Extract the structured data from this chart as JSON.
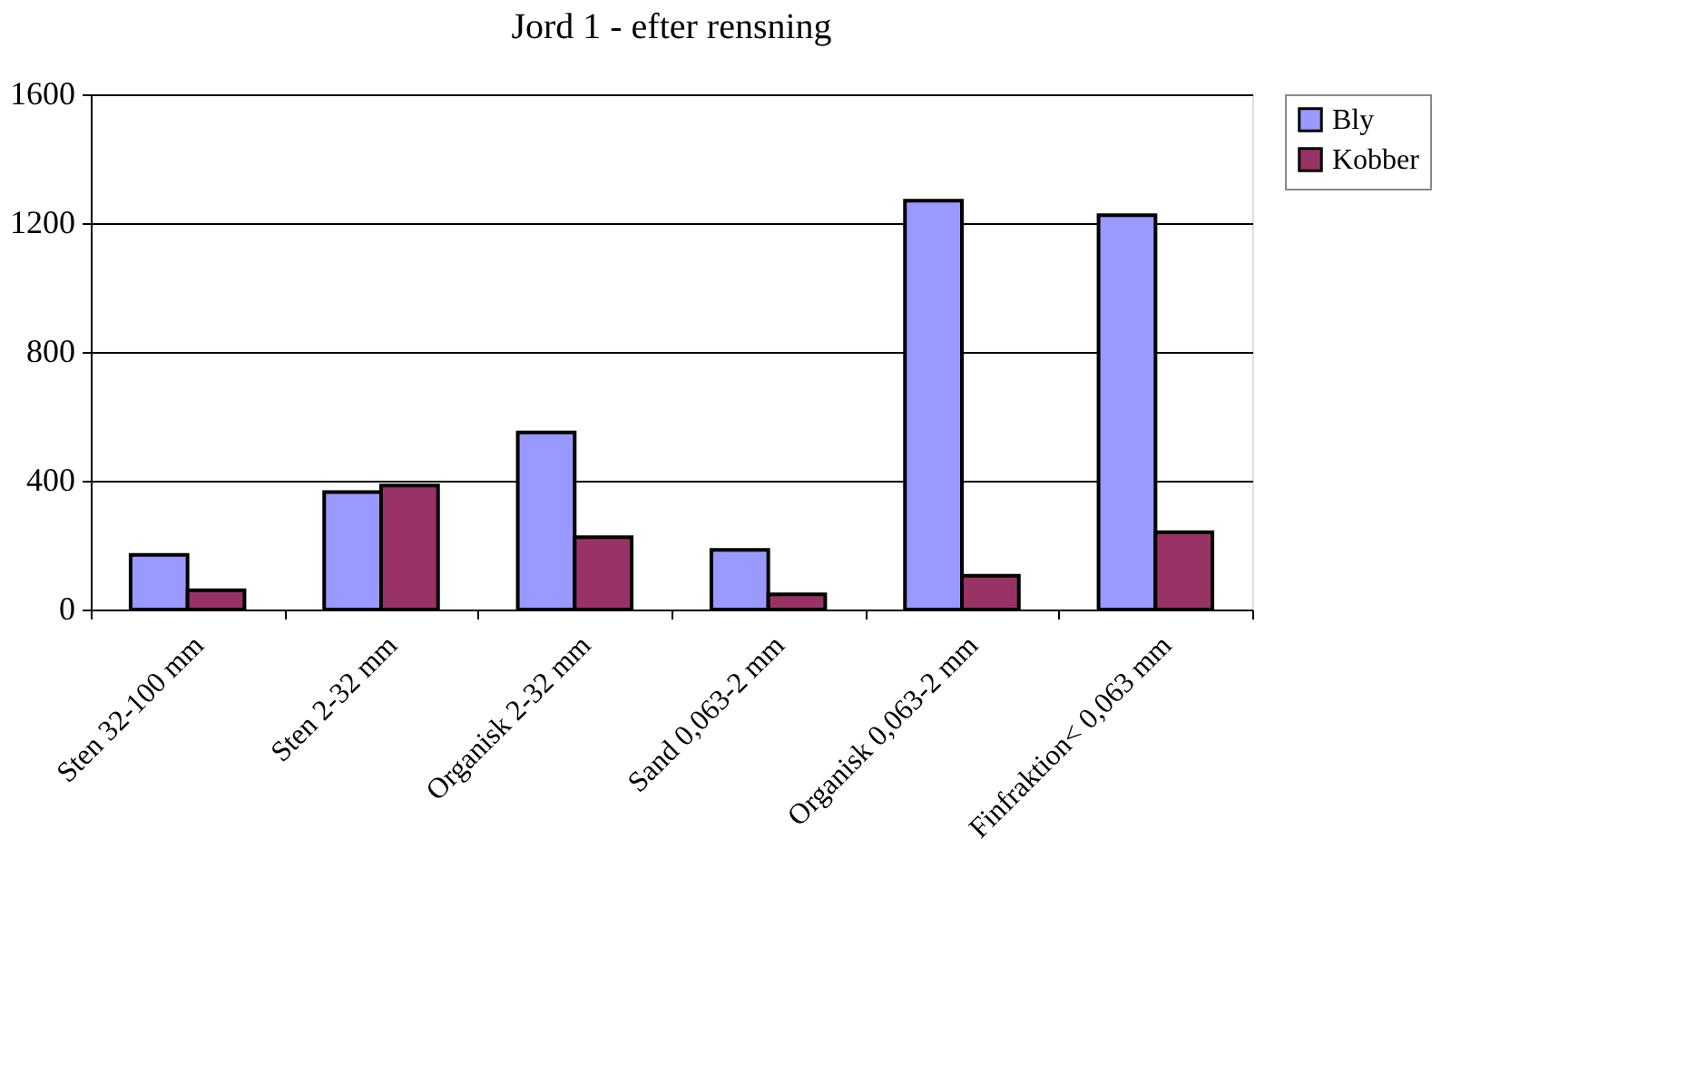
{
  "chart_data": {
    "type": "bar",
    "title": "Jord 1 - efter rensning",
    "categories": [
      "Sten 32-100 mm",
      "Sten 2-32 mm",
      "Organisk 2-32 mm",
      "Sand 0,063-2 mm",
      "Organisk 0,063-2 mm",
      "Finfraktion< 0,063 mm"
    ],
    "series": [
      {
        "name": "Bly",
        "color": "#9999ff",
        "values": [
          170,
          365,
          550,
          185,
          1270,
          1225
        ]
      },
      {
        "name": "Kobber",
        "color": "#993366",
        "values": [
          60,
          385,
          225,
          47,
          105,
          240
        ]
      }
    ],
    "ylim": [
      0,
      1600
    ],
    "yticks": [
      0,
      400,
      800,
      1200,
      1600
    ],
    "grid": "y",
    "legend": "right"
  }
}
